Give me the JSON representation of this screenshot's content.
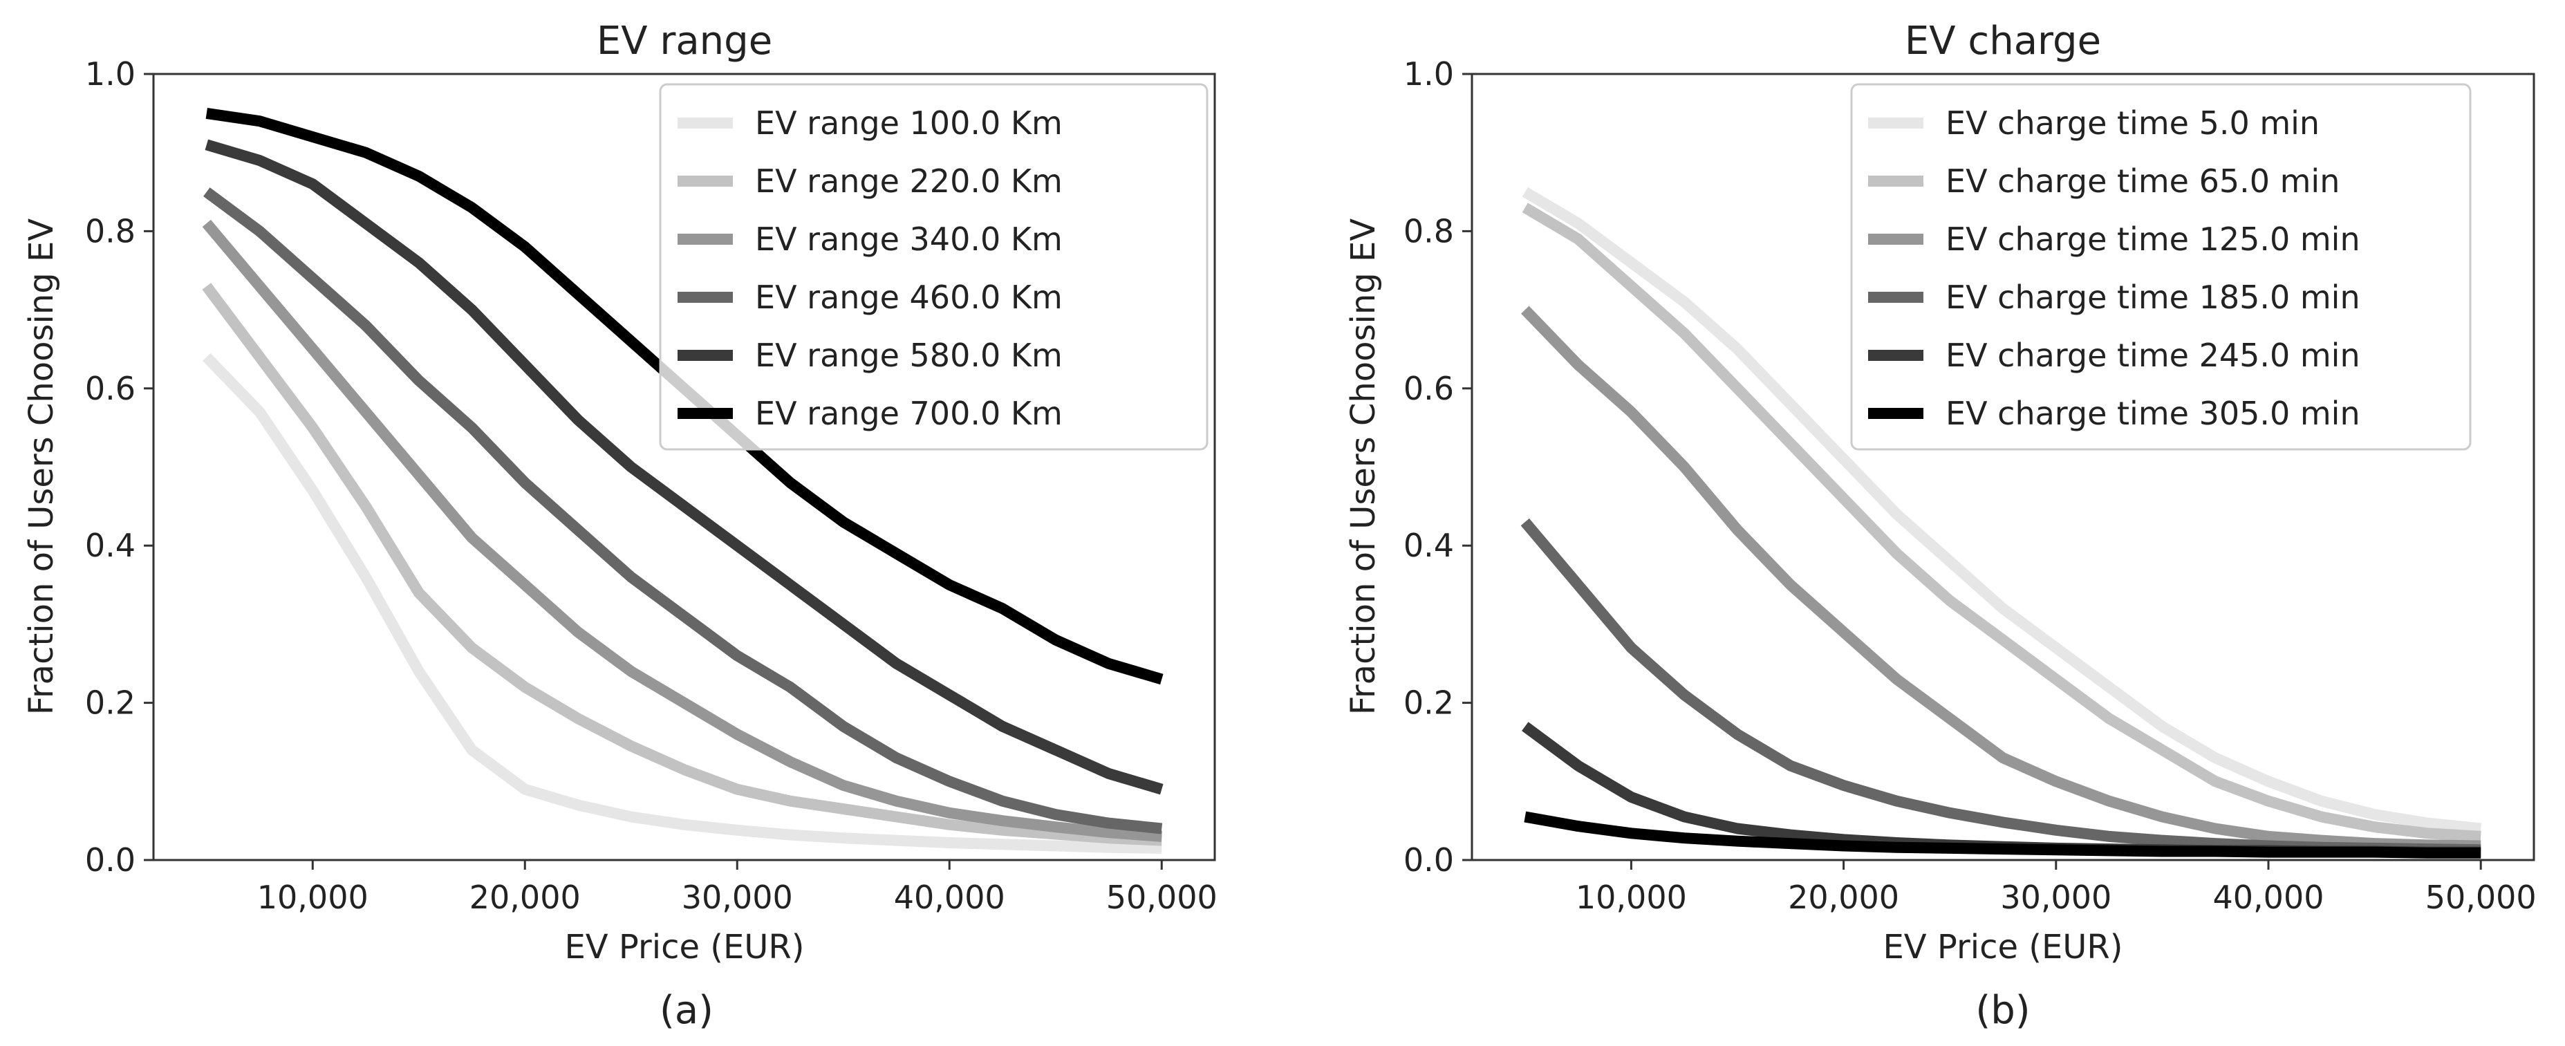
{
  "chart_data": [
    {
      "type": "line",
      "caption": "(a)",
      "title": "EV range",
      "xlabel": "EV Price (EUR)",
      "ylabel": "Fraction of Users Choosing EV",
      "xlim": [
        2500,
        52500
      ],
      "ylim": [
        0.0,
        1.0
      ],
      "xticks": [
        10000,
        20000,
        30000,
        40000,
        50000
      ],
      "xtick_labels": [
        "10,000",
        "20,000",
        "30,000",
        "40,000",
        "50,000"
      ],
      "yticks": [
        0.0,
        0.2,
        0.4,
        0.6,
        0.8,
        1.0
      ],
      "ytick_labels": [
        "0.0",
        "0.2",
        "0.4",
        "0.6",
        "0.8",
        "1.0"
      ],
      "legend_position": "top-right",
      "x": [
        5000,
        7500,
        10000,
        12500,
        15000,
        17500,
        20000,
        22500,
        25000,
        27500,
        30000,
        32500,
        35000,
        37500,
        40000,
        42500,
        45000,
        47500,
        50000
      ],
      "series": [
        {
          "name": "EV range 100.0 Km",
          "color": "#e6e6e6",
          "values": [
            0.64,
            0.57,
            0.47,
            0.36,
            0.24,
            0.14,
            0.09,
            0.07,
            0.055,
            0.045,
            0.038,
            0.032,
            0.028,
            0.025,
            0.022,
            0.02,
            0.018,
            0.016,
            0.015
          ]
        },
        {
          "name": "EV range 220.0 Km",
          "color": "#c2c2c2",
          "values": [
            0.73,
            0.64,
            0.55,
            0.45,
            0.34,
            0.27,
            0.22,
            0.18,
            0.145,
            0.115,
            0.09,
            0.075,
            0.065,
            0.055,
            0.045,
            0.038,
            0.033,
            0.028,
            0.025
          ]
        },
        {
          "name": "EV range 340.0 Km",
          "color": "#969696",
          "values": [
            0.81,
            0.73,
            0.65,
            0.57,
            0.49,
            0.41,
            0.35,
            0.29,
            0.24,
            0.2,
            0.16,
            0.125,
            0.095,
            0.075,
            0.06,
            0.05,
            0.042,
            0.035,
            0.03
          ]
        },
        {
          "name": "EV range 460.0 Km",
          "color": "#666666",
          "values": [
            0.85,
            0.8,
            0.74,
            0.68,
            0.61,
            0.55,
            0.48,
            0.42,
            0.36,
            0.31,
            0.26,
            0.22,
            0.17,
            0.13,
            0.1,
            0.075,
            0.058,
            0.047,
            0.04
          ]
        },
        {
          "name": "EV range 580.0 Km",
          "color": "#3a3a3a",
          "values": [
            0.91,
            0.89,
            0.86,
            0.81,
            0.76,
            0.7,
            0.63,
            0.56,
            0.5,
            0.45,
            0.4,
            0.35,
            0.3,
            0.25,
            0.21,
            0.17,
            0.14,
            0.11,
            0.09
          ]
        },
        {
          "name": "EV range 700.0 Km",
          "color": "#000000",
          "values": [
            0.95,
            0.94,
            0.92,
            0.9,
            0.87,
            0.83,
            0.78,
            0.72,
            0.66,
            0.6,
            0.54,
            0.48,
            0.43,
            0.39,
            0.35,
            0.32,
            0.28,
            0.25,
            0.23
          ]
        }
      ]
    },
    {
      "type": "line",
      "caption": "(b)",
      "title": "EV charge",
      "xlabel": "EV Price (EUR)",
      "ylabel": "Fraction of Users Choosing EV",
      "xlim": [
        2500,
        52500
      ],
      "ylim": [
        0.0,
        1.0
      ],
      "xticks": [
        10000,
        20000,
        30000,
        40000,
        50000
      ],
      "xtick_labels": [
        "10,000",
        "20,000",
        "30,000",
        "40,000",
        "50,000"
      ],
      "yticks": [
        0.0,
        0.2,
        0.4,
        0.6,
        0.8,
        1.0
      ],
      "ytick_labels": [
        "0.0",
        "0.2",
        "0.4",
        "0.6",
        "0.8",
        "1.0"
      ],
      "legend_position": "top-right",
      "x": [
        5000,
        7500,
        10000,
        12500,
        15000,
        17500,
        20000,
        22500,
        25000,
        27500,
        30000,
        32500,
        35000,
        37500,
        40000,
        42500,
        45000,
        47500,
        50000
      ],
      "series": [
        {
          "name": "EV charge time 5.0 min",
          "color": "#e6e6e6",
          "values": [
            0.85,
            0.81,
            0.76,
            0.71,
            0.65,
            0.58,
            0.51,
            0.44,
            0.38,
            0.32,
            0.27,
            0.22,
            0.17,
            0.13,
            0.1,
            0.075,
            0.058,
            0.047,
            0.04
          ]
        },
        {
          "name": "EV charge time 65.0 min",
          "color": "#c2c2c2",
          "values": [
            0.83,
            0.79,
            0.73,
            0.67,
            0.6,
            0.53,
            0.46,
            0.39,
            0.33,
            0.28,
            0.23,
            0.18,
            0.14,
            0.1,
            0.075,
            0.055,
            0.042,
            0.034,
            0.03
          ]
        },
        {
          "name": "EV charge time 125.0 min",
          "color": "#969696",
          "values": [
            0.7,
            0.63,
            0.57,
            0.5,
            0.42,
            0.35,
            0.29,
            0.23,
            0.18,
            0.13,
            0.1,
            0.075,
            0.055,
            0.04,
            0.03,
            0.025,
            0.021,
            0.019,
            0.018
          ]
        },
        {
          "name": "EV charge time 185.0 min",
          "color": "#666666",
          "values": [
            0.43,
            0.35,
            0.27,
            0.21,
            0.16,
            0.12,
            0.095,
            0.075,
            0.06,
            0.048,
            0.038,
            0.03,
            0.025,
            0.021,
            0.018,
            0.016,
            0.015,
            0.014,
            0.013
          ]
        },
        {
          "name": "EV charge time 245.0 min",
          "color": "#3a3a3a",
          "values": [
            0.17,
            0.12,
            0.08,
            0.055,
            0.04,
            0.032,
            0.026,
            0.022,
            0.019,
            0.017,
            0.015,
            0.014,
            0.013,
            0.012,
            0.012,
            0.011,
            0.011,
            0.01,
            0.01
          ]
        },
        {
          "name": "EV charge time 305.0 min",
          "color": "#000000",
          "values": [
            0.055,
            0.043,
            0.034,
            0.028,
            0.024,
            0.021,
            0.018,
            0.016,
            0.015,
            0.014,
            0.013,
            0.012,
            0.011,
            0.011,
            0.01,
            0.01,
            0.01,
            0.009,
            0.009
          ]
        }
      ]
    }
  ]
}
